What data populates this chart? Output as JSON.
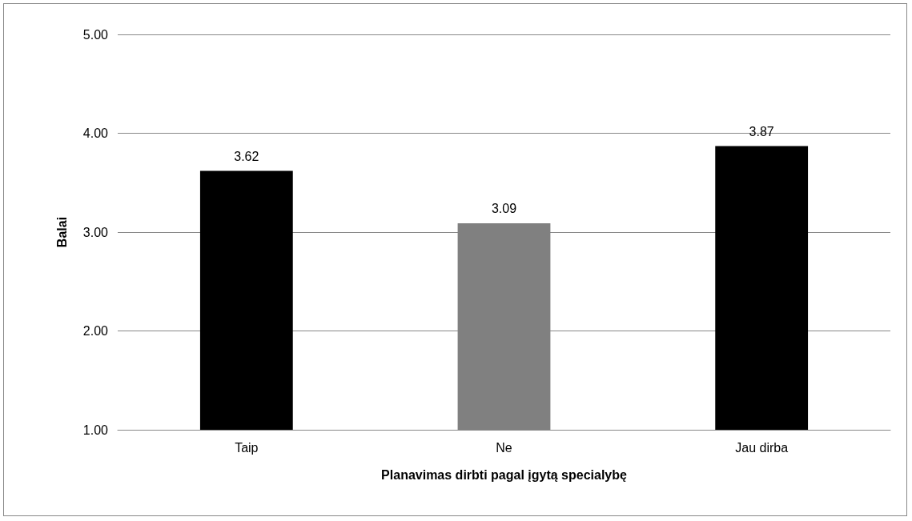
{
  "chart_data": {
    "type": "bar",
    "xlabel": "Planavimas dirbti pagal įgytą specialybę",
    "ylabel": "Balai",
    "categories": [
      "Taip",
      "Ne",
      "Jau dirba"
    ],
    "values": [
      3.62,
      3.09,
      3.87
    ],
    "colors": [
      "#000000",
      "#808080",
      "#000000"
    ],
    "ylim": [
      1,
      5
    ],
    "yticks": [
      {
        "value": 1,
        "label": "1.00"
      },
      {
        "value": 2,
        "label": "2.00"
      },
      {
        "value": 3,
        "label": "3.00"
      },
      {
        "value": 4,
        "label": "4.00"
      },
      {
        "value": 5,
        "label": "5.00"
      }
    ],
    "grid": "y",
    "data_labels": true
  }
}
